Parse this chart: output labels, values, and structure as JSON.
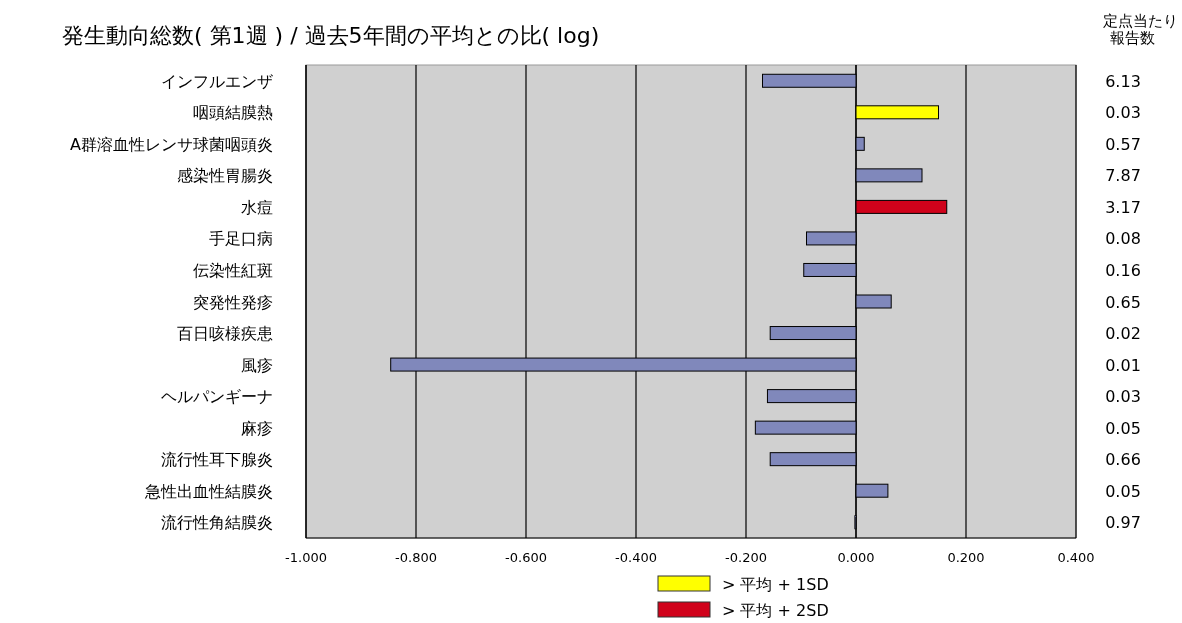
{
  "chart_data": {
    "type": "bar",
    "orientation": "horizontal",
    "title": "発生動向総数( 第1週 ) / 過去5年間の平均との比( log)",
    "y2label": "定点当たり報告数",
    "categories": [
      "インフルエンザ",
      "咽頭結膜熱",
      "A群溶血性レンサ球菌咽頭炎",
      "感染性胃腸炎",
      "水痘",
      "手足口病",
      "伝染性紅斑",
      "突発性発疹",
      "百日咳様疾患",
      "風疹",
      "ヘルパンギーナ",
      "麻疹",
      "流行性耳下腺炎",
      "急性出血性結膜炎",
      "流行性角結膜炎"
    ],
    "y2_categories": [
      "6.13",
      "0.03",
      "0.57",
      "7.87",
      "3.17",
      "0.08",
      "0.16",
      "0.65",
      "0.02",
      "0.01",
      "0.03",
      "0.05",
      "0.66",
      "0.05",
      "0.97"
    ],
    "series": [
      {
        "color": "#8088bb",
        "values": [
          -0.17,
          null,
          0.015,
          0.12,
          null,
          -0.09,
          -0.095,
          0.064,
          -0.156,
          -0.846,
          -0.161,
          -0.183,
          -0.156,
          0.058,
          -0.002
        ]
      },
      {
        "name": "> 平均 + 1SD",
        "color": "#ffff00",
        "values": [
          null,
          0.15,
          null,
          null,
          null,
          null,
          null,
          null,
          null,
          null,
          null,
          null,
          null,
          null,
          null
        ]
      },
      {
        "name": "> 平均 + 2SD",
        "color": "#d0021b",
        "values": [
          null,
          null,
          null,
          null,
          0.165,
          null,
          null,
          null,
          null,
          null,
          null,
          null,
          null,
          null,
          null
        ]
      }
    ],
    "xlim": [
      -1,
      0.4
    ],
    "xticks": [
      {
        "value": -1,
        "label": "-1.000"
      },
      {
        "value": -0.8,
        "label": "-0.800"
      },
      {
        "value": -0.6,
        "label": "-0.600"
      },
      {
        "value": -0.4,
        "label": "-0.400"
      },
      {
        "value": -0.2,
        "label": "-0.200"
      },
      {
        "value": 0,
        "label": "0.000"
      },
      {
        "value": 0.2,
        "label": "0.200"
      },
      {
        "value": 0.4,
        "label": "0.400"
      }
    ],
    "grid": "x",
    "legend": "bottom"
  }
}
